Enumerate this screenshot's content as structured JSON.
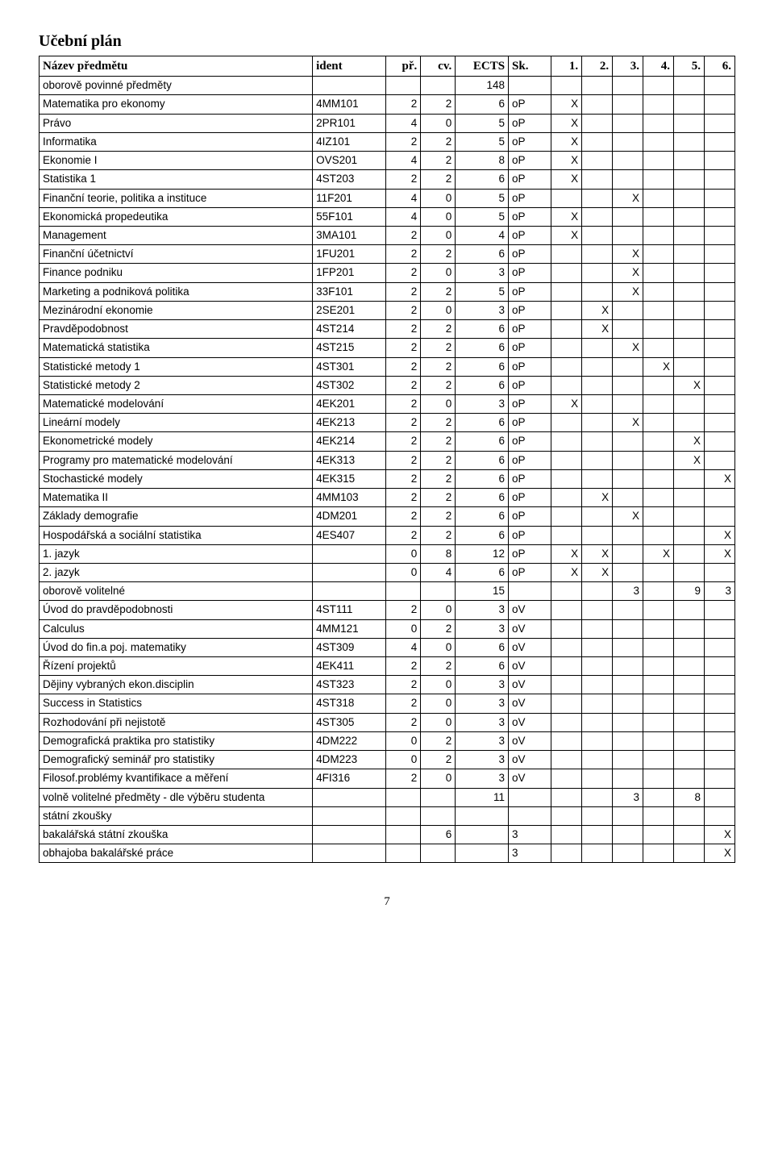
{
  "title": "Učební plán",
  "page_number": "7",
  "columns": [
    "Název předmětu",
    "ident",
    "př.",
    "cv.",
    "ECTS",
    "Sk.",
    "1.",
    "2.",
    "3.",
    "4.",
    "5.",
    "6."
  ],
  "rows": [
    [
      "oborově povinné předměty",
      "",
      "",
      "",
      "148",
      "",
      "",
      "",
      "",
      "",
      "",
      ""
    ],
    [
      "Matematika pro ekonomy",
      "4MM101",
      "2",
      "2",
      "6",
      "oP",
      "X",
      "",
      "",
      "",
      "",
      ""
    ],
    [
      "Právo",
      "2PR101",
      "4",
      "0",
      "5",
      "oP",
      "X",
      "",
      "",
      "",
      "",
      ""
    ],
    [
      "Informatika",
      "4IZ101",
      "2",
      "2",
      "5",
      "oP",
      "X",
      "",
      "",
      "",
      "",
      ""
    ],
    [
      "Ekonomie I",
      "OVS201",
      "4",
      "2",
      "8",
      "oP",
      "X",
      "",
      "",
      "",
      "",
      ""
    ],
    [
      "Statistika 1",
      "4ST203",
      "2",
      "2",
      "6",
      "oP",
      "X",
      "",
      "",
      "",
      "",
      ""
    ],
    [
      "Finanční teorie, politika a instituce",
      "11F201",
      "4",
      "0",
      "5",
      "oP",
      "",
      "",
      "X",
      "",
      "",
      ""
    ],
    [
      "Ekonomická propedeutika",
      "55F101",
      "4",
      "0",
      "5",
      "oP",
      "X",
      "",
      "",
      "",
      "",
      ""
    ],
    [
      "Management",
      "3MA101",
      "2",
      "0",
      "4",
      "oP",
      "X",
      "",
      "",
      "",
      "",
      ""
    ],
    [
      "Finanční účetnictví",
      "1FU201",
      "2",
      "2",
      "6",
      "oP",
      "",
      "",
      "X",
      "",
      "",
      ""
    ],
    [
      "Finance podniku",
      "1FP201",
      "2",
      "0",
      "3",
      "oP",
      "",
      "",
      "X",
      "",
      "",
      ""
    ],
    [
      "Marketing a podniková politika",
      "33F101",
      "2",
      "2",
      "5",
      "oP",
      "",
      "",
      "X",
      "",
      "",
      ""
    ],
    [
      "Mezinárodní ekonomie",
      "2SE201",
      "2",
      "0",
      "3",
      "oP",
      "",
      "X",
      "",
      "",
      "",
      ""
    ],
    [
      "Pravděpodobnost",
      "4ST214",
      "2",
      "2",
      "6",
      "oP",
      "",
      "X",
      "",
      "",
      "",
      ""
    ],
    [
      "Matematická statistika",
      "4ST215",
      "2",
      "2",
      "6",
      "oP",
      "",
      "",
      "X",
      "",
      "",
      ""
    ],
    [
      "Statistické metody 1",
      "4ST301",
      "2",
      "2",
      "6",
      "oP",
      "",
      "",
      "",
      "X",
      "",
      ""
    ],
    [
      "Statistické metody 2",
      "4ST302",
      "2",
      "2",
      "6",
      "oP",
      "",
      "",
      "",
      "",
      "X",
      ""
    ],
    [
      "Matematické modelování",
      "4EK201",
      "2",
      "0",
      "3",
      "oP",
      "X",
      "",
      "",
      "",
      "",
      ""
    ],
    [
      "Lineární modely",
      "4EK213",
      "2",
      "2",
      "6",
      "oP",
      "",
      "",
      "X",
      "",
      "",
      ""
    ],
    [
      "Ekonometrické modely",
      "4EK214",
      "2",
      "2",
      "6",
      "oP",
      "",
      "",
      "",
      "",
      "X",
      ""
    ],
    [
      "Programy pro matematické modelování",
      "4EK313",
      "2",
      "2",
      "6",
      "oP",
      "",
      "",
      "",
      "",
      "X",
      ""
    ],
    [
      "Stochastické modely",
      "4EK315",
      "2",
      "2",
      "6",
      "oP",
      "",
      "",
      "",
      "",
      "",
      "X"
    ],
    [
      "Matematika II",
      "4MM103",
      "2",
      "2",
      "6",
      "oP",
      "",
      "X",
      "",
      "",
      "",
      ""
    ],
    [
      "Základy demografie",
      "4DM201",
      "2",
      "2",
      "6",
      "oP",
      "",
      "",
      "X",
      "",
      "",
      ""
    ],
    [
      "Hospodářská a sociální statistika",
      "4ES407",
      "2",
      "2",
      "6",
      "oP",
      "",
      "",
      "",
      "",
      "",
      "X"
    ],
    [
      "1. jazyk",
      "",
      "0",
      "8",
      "12",
      "oP",
      "X",
      "X",
      "",
      "X",
      "",
      "X"
    ],
    [
      "2. jazyk",
      "",
      "0",
      "4",
      "6",
      "oP",
      "X",
      "X",
      "",
      "",
      "",
      ""
    ],
    [
      "oborově volitelné",
      "",
      "",
      "",
      "15",
      "",
      "",
      "",
      "3",
      "",
      "9",
      "3"
    ],
    [
      "Úvod do pravděpodobnosti",
      "4ST111",
      "2",
      "0",
      "3",
      "oV",
      "",
      "",
      "",
      "",
      "",
      ""
    ],
    [
      "Calculus",
      "4MM121",
      "0",
      "2",
      "3",
      "oV",
      "",
      "",
      "",
      "",
      "",
      ""
    ],
    [
      "Úvod do fin.a poj. matematiky",
      "4ST309",
      "4",
      "0",
      "6",
      "oV",
      "",
      "",
      "",
      "",
      "",
      ""
    ],
    [
      "Řízení projektů",
      "4EK411",
      "2",
      "2",
      "6",
      "oV",
      "",
      "",
      "",
      "",
      "",
      ""
    ],
    [
      "Dějiny vybraných ekon.disciplin",
      "4ST323",
      "2",
      "0",
      "3",
      "oV",
      "",
      "",
      "",
      "",
      "",
      ""
    ],
    [
      "Success in Statistics",
      "4ST318",
      "2",
      "0",
      "3",
      "oV",
      "",
      "",
      "",
      "",
      "",
      ""
    ],
    [
      "Rozhodování při nejistotě",
      "4ST305",
      "2",
      "0",
      "3",
      "oV",
      "",
      "",
      "",
      "",
      "",
      ""
    ],
    [
      "Demografická praktika pro statistiky",
      "4DM222",
      "0",
      "2",
      "3",
      "oV",
      "",
      "",
      "",
      "",
      "",
      ""
    ],
    [
      "Demografický seminář pro statistiky",
      "4DM223",
      "0",
      "2",
      "3",
      "oV",
      "",
      "",
      "",
      "",
      "",
      ""
    ],
    [
      "Filosof.problémy kvantifikace a měření",
      "4FI316",
      "2",
      "0",
      "3",
      "oV",
      "",
      "",
      "",
      "",
      "",
      ""
    ],
    [
      "volně volitelné předměty - dle výběru studenta",
      "",
      "",
      "",
      "11",
      "",
      "",
      "",
      "3",
      "",
      "8",
      ""
    ],
    [
      "státní zkoušky",
      "",
      "",
      "",
      "",
      "",
      "",
      "",
      "",
      "",
      "",
      ""
    ],
    [
      "bakalářská státní zkouška",
      "",
      "",
      "6",
      "",
      "3",
      "",
      "",
      "",
      "",
      "",
      "X"
    ],
    [
      "obhajoba bakalářské práce",
      "",
      "",
      "",
      "",
      "3",
      "",
      "",
      "",
      "",
      "",
      "X"
    ]
  ]
}
